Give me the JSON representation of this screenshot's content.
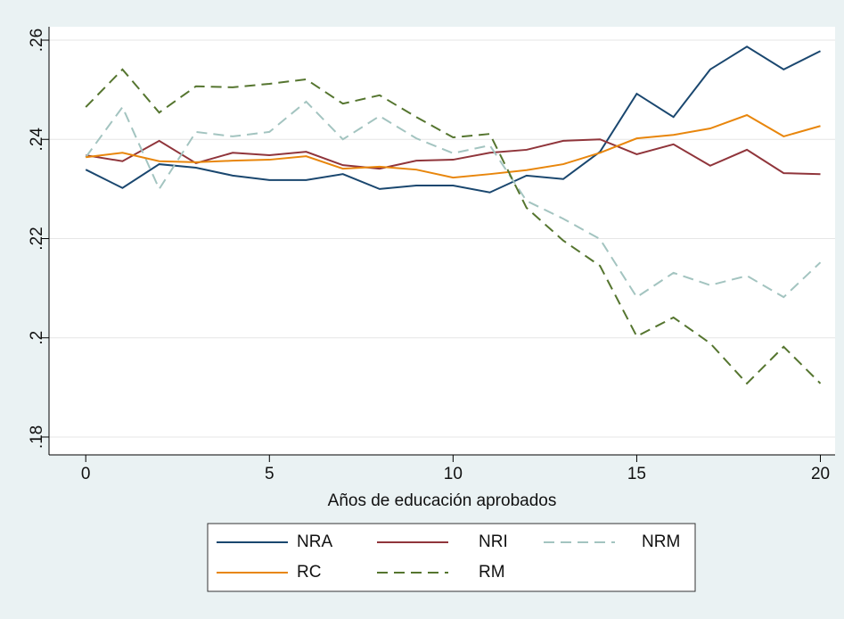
{
  "chart_data": {
    "type": "line",
    "x": [
      0,
      1,
      2,
      3,
      4,
      5,
      6,
      7,
      8,
      9,
      10,
      11,
      12,
      13,
      14,
      15,
      16,
      17,
      18,
      19,
      20
    ],
    "x_label": "Años de educación aprobados",
    "xlim": [
      -1,
      20.4
    ],
    "xticks": [
      0,
      5,
      10,
      15,
      20
    ],
    "ylim": [
      0.1764,
      0.2627
    ],
    "yticks": [
      {
        "value": 0.18,
        "label": ".18"
      },
      {
        "value": 0.2,
        "label": ".2"
      },
      {
        "value": 0.22,
        "label": ".22"
      },
      {
        "value": 0.24,
        "label": ".24"
      },
      {
        "value": 0.26,
        "label": ".26"
      }
    ],
    "grid": true,
    "legend_position": "bottom",
    "series": [
      {
        "name": "NRA",
        "color": "#1a476f",
        "dash": false,
        "values": [
          0.2339,
          0.2302,
          0.235,
          0.2343,
          0.2327,
          0.2318,
          0.2318,
          0.233,
          0.23,
          0.2307,
          0.2307,
          0.2293,
          0.2327,
          0.232,
          0.2375,
          0.2492,
          0.2445,
          0.2541,
          0.2587,
          0.2541,
          0.2578
        ]
      },
      {
        "name": "NRI",
        "color": "#90353b",
        "dash": false,
        "values": [
          0.2368,
          0.2356,
          0.2397,
          0.2352,
          0.2373,
          0.2368,
          0.2375,
          0.2348,
          0.2341,
          0.2357,
          0.2359,
          0.2373,
          0.2379,
          0.2397,
          0.24,
          0.237,
          0.239,
          0.2347,
          0.2379,
          0.2332,
          0.233
        ]
      },
      {
        "name": "NRM",
        "color": "#a3c4c0",
        "dash": true,
        "values": [
          0.2364,
          0.2465,
          0.23,
          0.2415,
          0.2406,
          0.2415,
          0.2476,
          0.24,
          0.2447,
          0.2402,
          0.2372,
          0.2388,
          0.2276,
          0.224,
          0.2199,
          0.2082,
          0.2131,
          0.2106,
          0.2125,
          0.2082,
          0.2152
        ]
      },
      {
        "name": "RC",
        "color": "#e8860c",
        "dash": false,
        "values": [
          0.2364,
          0.2373,
          0.2356,
          0.2354,
          0.2357,
          0.2359,
          0.2366,
          0.2341,
          0.2345,
          0.2339,
          0.2323,
          0.233,
          0.2338,
          0.235,
          0.2373,
          0.2402,
          0.2409,
          0.2422,
          0.2449,
          0.2406,
          0.2427
        ]
      },
      {
        "name": "RM",
        "color": "#55752f",
        "dash": true,
        "values": [
          0.2465,
          0.2541,
          0.2454,
          0.2507,
          0.2505,
          0.2512,
          0.2521,
          0.2472,
          0.2489,
          0.2445,
          0.2404,
          0.2411,
          0.2262,
          0.2196,
          0.2145,
          0.2003,
          0.2041,
          0.1989,
          0.1908,
          0.1982,
          0.1908
        ]
      }
    ]
  }
}
